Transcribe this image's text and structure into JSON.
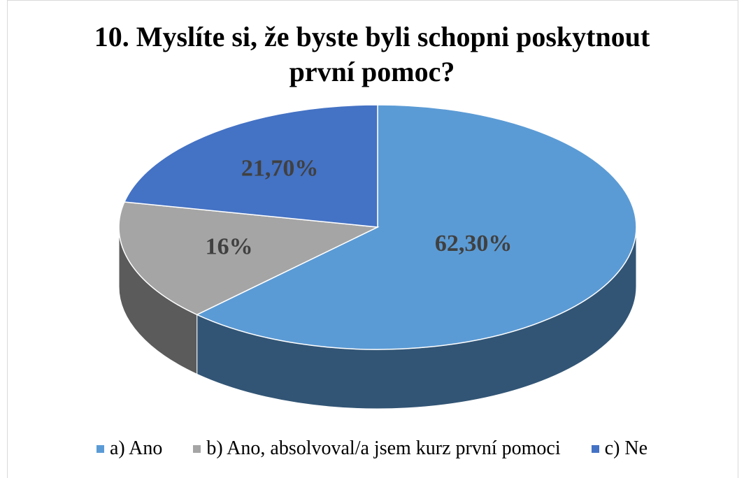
{
  "chart_data": {
    "type": "pie",
    "title": "10. Myslíte si, že byste byli schopni poskytnout první pomoc?",
    "categories": [
      "a) Ano",
      "b) Ano, absolvoval/a jsem kurz první pomoci",
      "c) Ne"
    ],
    "values": [
      62.3,
      16,
      21.7
    ],
    "value_labels": [
      "62,30%",
      "16%",
      "21,70%"
    ],
    "colors": [
      "#5b9bd5",
      "#a5a5a5",
      "#4472c4"
    ],
    "legend": "bottom"
  }
}
